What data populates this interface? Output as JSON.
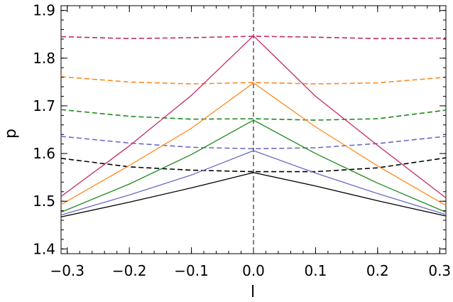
{
  "chart_data": {
    "type": "line",
    "title": "",
    "xlabel": "l",
    "ylabel": "p",
    "xlim": [
      -0.31,
      0.31
    ],
    "ylim": [
      1.39,
      1.91
    ],
    "xticks": [
      -0.3,
      -0.2,
      -0.1,
      0.0,
      0.1,
      0.2,
      0.3
    ],
    "xtick_labels": [
      "−0.3",
      "−0.2",
      "−0.1",
      "0.0",
      "0.1",
      "0.2",
      "0.3"
    ],
    "yticks": [
      1.4,
      1.5,
      1.6,
      1.7,
      1.8,
      1.9
    ],
    "ytick_labels": [
      "1.4",
      "1.5",
      "1.6",
      "1.7",
      "1.8",
      "1.9"
    ],
    "grid": false,
    "reference_line": {
      "x": 0.0,
      "style": "dashed",
      "color": "#000000"
    },
    "series": [
      {
        "color": "#000000",
        "style": "solid",
        "x": [
          -0.31,
          -0.2,
          -0.1,
          0.0,
          0.1,
          0.2,
          0.31
        ],
        "y": [
          1.467,
          1.498,
          1.528,
          1.56,
          1.532,
          1.501,
          1.469
        ]
      },
      {
        "color": "#000000",
        "style": "dashed",
        "x": [
          -0.31,
          -0.2,
          -0.1,
          0.0,
          0.1,
          0.2,
          0.31
        ],
        "y": [
          1.59,
          1.572,
          1.565,
          1.562,
          1.562,
          1.57,
          1.591
        ]
      },
      {
        "color": "#6a6ac6",
        "style": "solid",
        "x": [
          -0.31,
          -0.2,
          -0.1,
          0.0,
          0.1,
          0.2,
          0.31
        ],
        "y": [
          1.471,
          1.513,
          1.555,
          1.606,
          1.559,
          1.516,
          1.472
        ]
      },
      {
        "color": "#6a6ac6",
        "style": "dashed",
        "x": [
          -0.31,
          -0.2,
          -0.1,
          0.0,
          0.1,
          0.2,
          0.31
        ],
        "y": [
          1.636,
          1.622,
          1.613,
          1.61,
          1.612,
          1.621,
          1.636
        ]
      },
      {
        "color": "#1e8a1e",
        "style": "solid",
        "x": [
          -0.31,
          -0.2,
          -0.1,
          0.0,
          0.1,
          0.2,
          0.31
        ],
        "y": [
          1.477,
          1.536,
          1.598,
          1.67,
          1.6,
          1.538,
          1.477
        ]
      },
      {
        "color": "#1e8a1e",
        "style": "dashed",
        "x": [
          -0.31,
          -0.2,
          -0.1,
          0.0,
          0.1,
          0.2,
          0.31
        ],
        "y": [
          1.692,
          1.678,
          1.672,
          1.673,
          1.67,
          1.673,
          1.691
        ]
      },
      {
        "color": "#ff8a1e",
        "style": "solid",
        "x": [
          -0.31,
          -0.2,
          -0.1,
          0.0,
          0.1,
          0.2,
          0.31
        ],
        "y": [
          1.493,
          1.575,
          1.653,
          1.748,
          1.656,
          1.574,
          1.491
        ]
      },
      {
        "color": "#ff8a1e",
        "style": "dashed",
        "x": [
          -0.31,
          -0.2,
          -0.1,
          0.0,
          0.1,
          0.2,
          0.31
        ],
        "y": [
          1.761,
          1.75,
          1.746,
          1.749,
          1.746,
          1.748,
          1.76
        ]
      },
      {
        "color": "#c42a6a",
        "style": "solid",
        "x": [
          -0.31,
          -0.2,
          -0.1,
          0.0,
          0.1,
          0.2,
          0.31
        ],
        "y": [
          1.51,
          1.616,
          1.722,
          1.847,
          1.72,
          1.617,
          1.507
        ]
      },
      {
        "color": "#c42a6a",
        "style": "dashed",
        "x": [
          -0.31,
          -0.2,
          -0.1,
          0.0,
          0.1,
          0.2,
          0.31
        ],
        "y": [
          1.845,
          1.841,
          1.843,
          1.846,
          1.844,
          1.841,
          1.842
        ]
      }
    ]
  }
}
